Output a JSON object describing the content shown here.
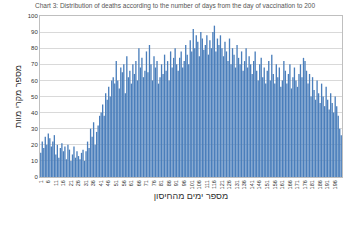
{
  "chart_data": {
    "type": "bar",
    "title": "Chart 3: Distribution of deaths according to the number of days from the day of vaccination to 200",
    "x_label": "מספר ימים מהחיסון",
    "y_label": "מספר מקרי מוות",
    "x": [
      1,
      2,
      3,
      4,
      5,
      6,
      7,
      8,
      9,
      10,
      11,
      12,
      13,
      14,
      15,
      16,
      17,
      18,
      19,
      20,
      21,
      22,
      23,
      24,
      25,
      26,
      27,
      28,
      29,
      30,
      31,
      32,
      33,
      34,
      35,
      36,
      37,
      38,
      39,
      40,
      41,
      42,
      43,
      44,
      45,
      46,
      47,
      48,
      49,
      50,
      51,
      52,
      53,
      54,
      55,
      56,
      57,
      58,
      59,
      60,
      61,
      62,
      63,
      64,
      65,
      66,
      67,
      68,
      69,
      70,
      71,
      72,
      73,
      74,
      75,
      76,
      77,
      78,
      79,
      80,
      81,
      82,
      83,
      84,
      85,
      86,
      87,
      88,
      89,
      90,
      91,
      92,
      93,
      94,
      95,
      96,
      97,
      98,
      99,
      100,
      101,
      102,
      103,
      104,
      105,
      106,
      107,
      108,
      109,
      110,
      111,
      112,
      113,
      114,
      115,
      116,
      117,
      118,
      119,
      120,
      121,
      122,
      123,
      124,
      125,
      126,
      127,
      128,
      129,
      130,
      131,
      132,
      133,
      134,
      135,
      136,
      137,
      138,
      139,
      140,
      141,
      142,
      143,
      144,
      145,
      146,
      147,
      148,
      149,
      150,
      151,
      152,
      153,
      154,
      155,
      156,
      157,
      158,
      159,
      160,
      161,
      162,
      163,
      164,
      165,
      166,
      167,
      168,
      169,
      170,
      171,
      172,
      173,
      174,
      175,
      176,
      177,
      178,
      179,
      180,
      181,
      182,
      183,
      184,
      185,
      186,
      187,
      188,
      189,
      190,
      191,
      192,
      193,
      194,
      195,
      196,
      197,
      198,
      199,
      200
    ],
    "values": [
      15,
      22,
      18,
      25,
      20,
      27,
      24,
      19,
      22,
      26,
      14,
      20,
      12,
      18,
      21,
      16,
      19,
      11,
      20,
      17,
      10,
      14,
      19,
      12,
      16,
      13,
      11,
      15,
      17,
      10,
      16,
      22,
      18,
      30,
      25,
      34,
      20,
      28,
      32,
      38,
      40,
      45,
      38,
      52,
      48,
      56,
      50,
      60,
      62,
      58,
      72,
      60,
      55,
      68,
      65,
      70,
      52,
      75,
      62,
      66,
      58,
      70,
      64,
      72,
      60,
      80,
      68,
      74,
      62,
      66,
      78,
      65,
      82,
      70,
      60,
      75,
      68,
      72,
      58,
      62,
      70,
      64,
      76,
      66,
      72,
      60,
      78,
      68,
      74,
      80,
      70,
      66,
      74,
      78,
      68,
      72,
      82,
      76,
      70,
      85,
      78,
      92,
      80,
      88,
      84,
      75,
      90,
      86,
      79,
      82,
      88,
      76,
      85,
      80,
      90,
      94,
      78,
      86,
      82,
      88,
      80,
      75,
      84,
      78,
      72,
      86,
      70,
      80,
      76,
      68,
      82,
      74,
      70,
      78,
      66,
      72,
      80,
      68,
      75,
      70,
      64,
      72,
      78,
      66,
      60,
      70,
      74,
      62,
      68,
      58,
      66,
      72,
      60,
      76,
      64,
      58,
      70,
      62,
      68,
      56,
      60,
      72,
      66,
      58,
      64,
      70,
      55,
      62,
      68,
      60,
      56,
      64,
      70,
      62,
      74,
      72,
      66,
      58,
      64,
      50,
      62,
      54,
      48,
      60,
      52,
      46,
      58,
      50,
      44,
      56,
      48,
      42,
      52,
      46,
      40,
      50,
      44,
      38,
      30,
      26
    ],
    "color": "#4a7ebb",
    "xlim": [
      0.5,
      200.5
    ],
    "xticks": [
      1,
      6,
      11,
      16,
      21,
      26,
      31,
      36,
      41,
      46,
      51,
      56,
      61,
      66,
      71,
      76,
      81,
      86,
      91,
      96,
      101,
      106,
      111,
      116,
      121,
      126,
      131,
      136,
      141,
      146,
      151,
      156,
      161,
      166,
      171,
      176,
      181,
      186,
      191,
      196
    ],
    "ylim": [
      0,
      100
    ],
    "yticks": [
      0,
      10,
      20,
      30,
      40,
      50,
      60,
      70,
      80,
      90,
      100
    ],
    "grid": true
  }
}
